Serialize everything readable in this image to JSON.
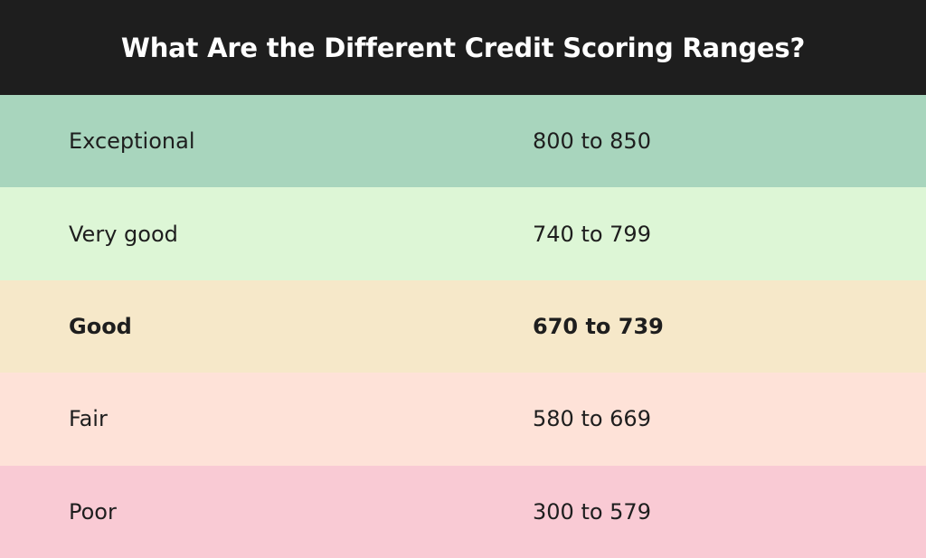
{
  "title": "What Are the Different Credit Scoring Ranges?",
  "rows": [
    {
      "label": "Exceptional",
      "range": "800 to 850",
      "color": "#a8d5bd",
      "bold": false
    },
    {
      "label": "Very good",
      "range": "740 to 799",
      "color": "#ddf6d6",
      "bold": false
    },
    {
      "label": "Good",
      "range": "670 to 739",
      "color": "#f6e8c9",
      "bold": true
    },
    {
      "label": "Fair",
      "range": "580 to 669",
      "color": "#fee2d8",
      "bold": false
    },
    {
      "label": "Poor",
      "range": "300 to 579",
      "color": "#f9cad4",
      "bold": false
    }
  ]
}
